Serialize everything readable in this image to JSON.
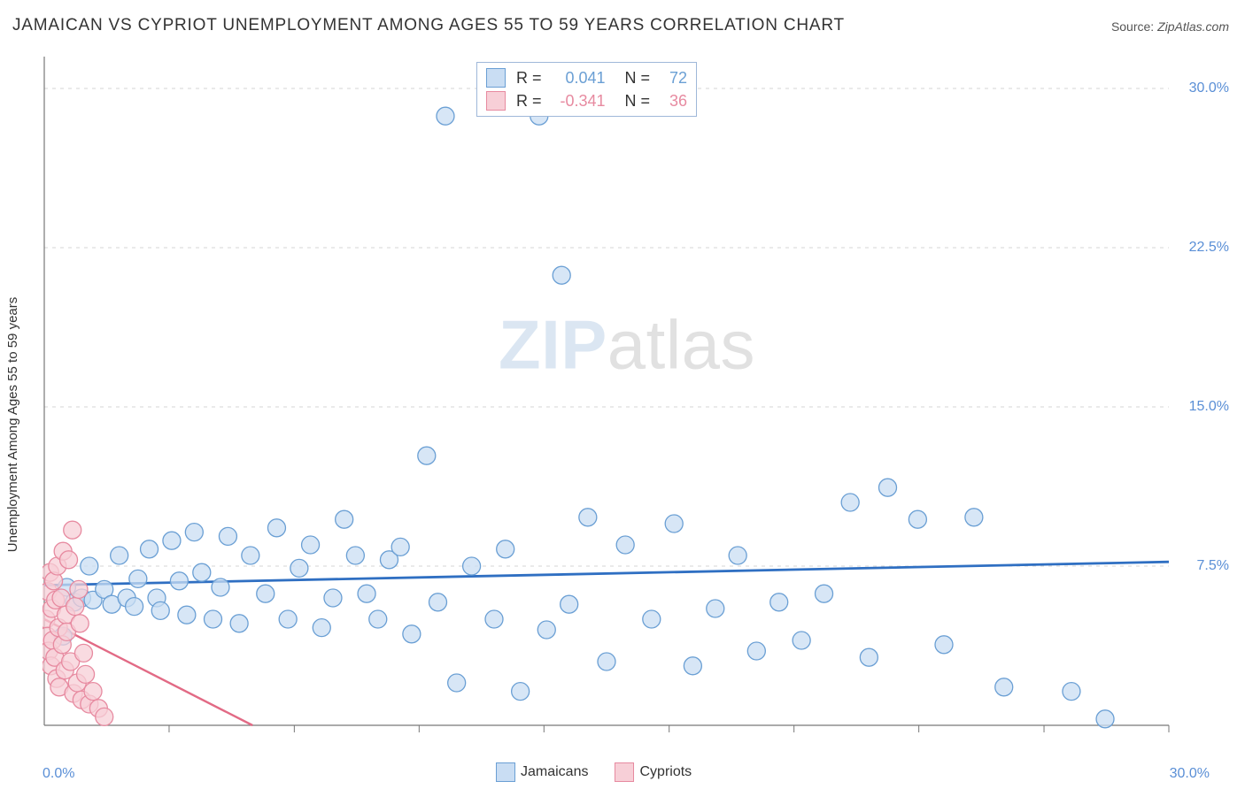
{
  "title": "JAMAICAN VS CYPRIOT UNEMPLOYMENT AMONG AGES 55 TO 59 YEARS CORRELATION CHART",
  "source_label": "Source:",
  "source_value": "ZipAtlas.com",
  "y_axis_label": "Unemployment Among Ages 55 to 59 years",
  "watermark_zip": "ZIP",
  "watermark_atlas": "atlas",
  "chart": {
    "type": "scatter",
    "xlim": [
      0,
      30
    ],
    "ylim": [
      0,
      31.5
    ],
    "x_tick_min_label": "0.0%",
    "x_tick_max_label": "30.0%",
    "y_ticks": [
      {
        "v": 7.5,
        "label": "7.5%"
      },
      {
        "v": 15.0,
        "label": "15.0%"
      },
      {
        "v": 22.5,
        "label": "22.5%"
      },
      {
        "v": 30.0,
        "label": "30.0%"
      }
    ],
    "x_ticks_minor": [
      3.33,
      6.67,
      10,
      13.33,
      16.67,
      20,
      23.33,
      26.67,
      30
    ],
    "grid_color": "#d5d5d5",
    "axis_color": "#777777",
    "background_color": "#ffffff",
    "marker_radius": 10,
    "marker_stroke_width": 1.3,
    "series": [
      {
        "name": "Jamaicans",
        "fill": "#c9ddf3",
        "stroke": "#6a9fd4",
        "R": "0.041",
        "N": "72",
        "trend": {
          "y_at_xmin": 6.6,
          "y_at_xmax": 7.7,
          "stroke": "#2f6fc2",
          "width": 2.8,
          "dash": ""
        },
        "points": [
          [
            0.5,
            4.2
          ],
          [
            0.6,
            6.5
          ],
          [
            0.8,
            5.8
          ],
          [
            1.0,
            6.0
          ],
          [
            1.2,
            7.5
          ],
          [
            1.3,
            5.9
          ],
          [
            1.6,
            6.4
          ],
          [
            1.8,
            5.7
          ],
          [
            2.0,
            8.0
          ],
          [
            2.2,
            6.0
          ],
          [
            2.4,
            5.6
          ],
          [
            2.5,
            6.9
          ],
          [
            2.8,
            8.3
          ],
          [
            3.0,
            6.0
          ],
          [
            3.1,
            5.4
          ],
          [
            3.4,
            8.7
          ],
          [
            3.6,
            6.8
          ],
          [
            3.8,
            5.2
          ],
          [
            4.0,
            9.1
          ],
          [
            4.2,
            7.2
          ],
          [
            4.5,
            5.0
          ],
          [
            4.7,
            6.5
          ],
          [
            4.9,
            8.9
          ],
          [
            5.2,
            4.8
          ],
          [
            5.5,
            8.0
          ],
          [
            5.9,
            6.2
          ],
          [
            6.2,
            9.3
          ],
          [
            6.5,
            5.0
          ],
          [
            6.8,
            7.4
          ],
          [
            7.1,
            8.5
          ],
          [
            7.4,
            4.6
          ],
          [
            7.7,
            6.0
          ],
          [
            8.0,
            9.7
          ],
          [
            8.3,
            8.0
          ],
          [
            8.6,
            6.2
          ],
          [
            8.9,
            5.0
          ],
          [
            9.2,
            7.8
          ],
          [
            9.5,
            8.4
          ],
          [
            9.8,
            4.3
          ],
          [
            10.2,
            12.7
          ],
          [
            10.7,
            28.7
          ],
          [
            10.5,
            5.8
          ],
          [
            11.0,
            2.0
          ],
          [
            11.4,
            7.5
          ],
          [
            12.0,
            5.0
          ],
          [
            12.3,
            8.3
          ],
          [
            12.7,
            1.6
          ],
          [
            13.2,
            28.7
          ],
          [
            13.4,
            4.5
          ],
          [
            13.8,
            21.2
          ],
          [
            14.0,
            5.7
          ],
          [
            14.5,
            9.8
          ],
          [
            15.0,
            3.0
          ],
          [
            15.5,
            8.5
          ],
          [
            16.2,
            5.0
          ],
          [
            16.8,
            9.5
          ],
          [
            17.3,
            2.8
          ],
          [
            17.9,
            5.5
          ],
          [
            18.5,
            8.0
          ],
          [
            19.0,
            3.5
          ],
          [
            19.6,
            5.8
          ],
          [
            20.2,
            4.0
          ],
          [
            20.8,
            6.2
          ],
          [
            21.5,
            10.5
          ],
          [
            22.0,
            3.2
          ],
          [
            22.5,
            11.2
          ],
          [
            23.3,
            9.7
          ],
          [
            24.0,
            3.8
          ],
          [
            24.8,
            9.8
          ],
          [
            25.6,
            1.8
          ],
          [
            27.4,
            1.6
          ],
          [
            28.3,
            0.3
          ]
        ]
      },
      {
        "name": "Cypriots",
        "fill": "#f7cfd7",
        "stroke": "#e78aa0",
        "R": "-0.341",
        "N": "36",
        "trend": {
          "y_at_xmin": 5.0,
          "y_at_xmax": -22.0,
          "stroke": "#e26a85",
          "width": 2.4,
          "dash": ""
        },
        "trend_ext": {
          "y_at_xmin": 5.0,
          "y_at_xmax": -22.0,
          "stroke": "#e9b4bf",
          "width": 1.2,
          "dash": "6,5"
        },
        "points": [
          [
            0.05,
            5.0
          ],
          [
            0.08,
            4.2
          ],
          [
            0.1,
            6.3
          ],
          [
            0.12,
            3.5
          ],
          [
            0.15,
            7.2
          ],
          [
            0.18,
            2.8
          ],
          [
            0.2,
            5.5
          ],
          [
            0.22,
            4.0
          ],
          [
            0.25,
            6.8
          ],
          [
            0.28,
            3.2
          ],
          [
            0.3,
            5.9
          ],
          [
            0.33,
            2.2
          ],
          [
            0.35,
            7.5
          ],
          [
            0.38,
            4.6
          ],
          [
            0.4,
            1.8
          ],
          [
            0.45,
            6.0
          ],
          [
            0.48,
            3.8
          ],
          [
            0.5,
            8.2
          ],
          [
            0.55,
            2.6
          ],
          [
            0.58,
            5.2
          ],
          [
            0.6,
            4.4
          ],
          [
            0.65,
            7.8
          ],
          [
            0.7,
            3.0
          ],
          [
            0.75,
            9.2
          ],
          [
            0.78,
            1.5
          ],
          [
            0.82,
            5.6
          ],
          [
            0.88,
            2.0
          ],
          [
            0.92,
            6.4
          ],
          [
            0.95,
            4.8
          ],
          [
            1.0,
            1.2
          ],
          [
            1.05,
            3.4
          ],
          [
            1.1,
            2.4
          ],
          [
            1.2,
            1.0
          ],
          [
            1.3,
            1.6
          ],
          [
            1.45,
            0.8
          ],
          [
            1.6,
            0.4
          ]
        ]
      }
    ],
    "stats_box": {
      "border_color": "#9fb8d9",
      "text_color_label": "#333333"
    },
    "legend": {
      "items": [
        {
          "label": "Jamaicans",
          "fill": "#c9ddf3",
          "stroke": "#6a9fd4"
        },
        {
          "label": "Cypriots",
          "fill": "#f7cfd7",
          "stroke": "#e78aa0"
        }
      ]
    },
    "axis_label_colors": {
      "x": "#5a8fd6",
      "y": "#5a8fd6"
    },
    "title_fontsize": 19,
    "label_fontsize": 15,
    "tick_fontsize": 16
  }
}
